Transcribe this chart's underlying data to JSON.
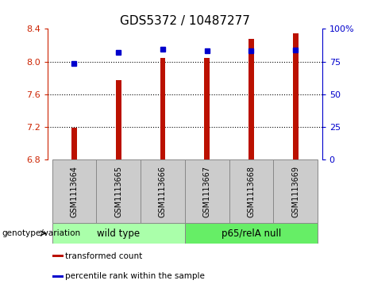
{
  "title": "GDS5372 / 10487277",
  "samples": [
    "GSM1113664",
    "GSM1113665",
    "GSM1113666",
    "GSM1113667",
    "GSM1113668",
    "GSM1113669"
  ],
  "red_values": [
    7.19,
    7.77,
    8.04,
    8.04,
    8.28,
    8.34
  ],
  "blue_percentiles": [
    73.5,
    82.0,
    84.5,
    83.5,
    83.5,
    84.0
  ],
  "ylim_left": [
    6.8,
    8.4
  ],
  "ylim_right": [
    0,
    100
  ],
  "yticks_left": [
    6.8,
    7.2,
    7.6,
    8.0,
    8.4
  ],
  "yticks_right": [
    0,
    25,
    50,
    75,
    100
  ],
  "ytick_labels_right": [
    "0",
    "25",
    "50",
    "75",
    "100%"
  ],
  "bar_color": "#bb1100",
  "dot_color": "#0000cc",
  "bar_width": 0.12,
  "groups": [
    {
      "label": "wild type",
      "color": "#aaffaa",
      "xstart": -0.5,
      "xend": 2.5
    },
    {
      "label": "p65/relA null",
      "color": "#66ee66",
      "xstart": 2.5,
      "xend": 5.5
    }
  ],
  "group_label_prefix": "genotype/variation",
  "legend_items": [
    {
      "label": "transformed count",
      "color": "#bb1100"
    },
    {
      "label": "percentile rank within the sample",
      "color": "#0000cc"
    }
  ],
  "plot_bg": "#ffffff",
  "left_tick_color": "#cc2200",
  "right_tick_color": "#0000cc",
  "grid_lines": [
    7.2,
    7.6,
    8.0
  ]
}
